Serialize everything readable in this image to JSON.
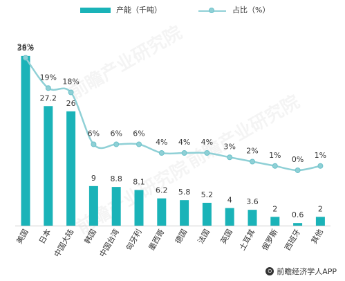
{
  "legend": {
    "bar_label": "产能（千吨）",
    "line_label": "占比（%）"
  },
  "footer": {
    "source": "前瞻经济学人APP"
  },
  "watermark": "前瞻产业研究院",
  "colors": {
    "bar": "#1ab3b8",
    "line": "#8fd0d6"
  },
  "chart_data": {
    "type": "bar",
    "categories": [
      "美国",
      "日本",
      "中国大陆",
      "韩国",
      "中国台湾",
      "匈牙利",
      "墨西哥",
      "德国",
      "法国",
      "英国",
      "土耳其",
      "俄罗斯",
      "西班牙",
      "其他"
    ],
    "series": [
      {
        "name": "产能（千吨）",
        "type": "bar",
        "values": [
          38.6,
          27.2,
          26,
          9,
          8.8,
          8.1,
          6.2,
          5.8,
          5.2,
          4,
          3.6,
          2,
          0.6,
          2
        ]
      },
      {
        "name": "占比（%）",
        "type": "line",
        "values": [
          26,
          19,
          18,
          6,
          6,
          6,
          4,
          4,
          4,
          3,
          2,
          1,
          0,
          1
        ],
        "labels": [
          "26%",
          "19%",
          "18%",
          "6%",
          "6%",
          "6%",
          "4%",
          "4%",
          "4%",
          "3%",
          "2%",
          "1%",
          "0%",
          "1%"
        ]
      }
    ],
    "legend_position": "top",
    "grid": false
  }
}
